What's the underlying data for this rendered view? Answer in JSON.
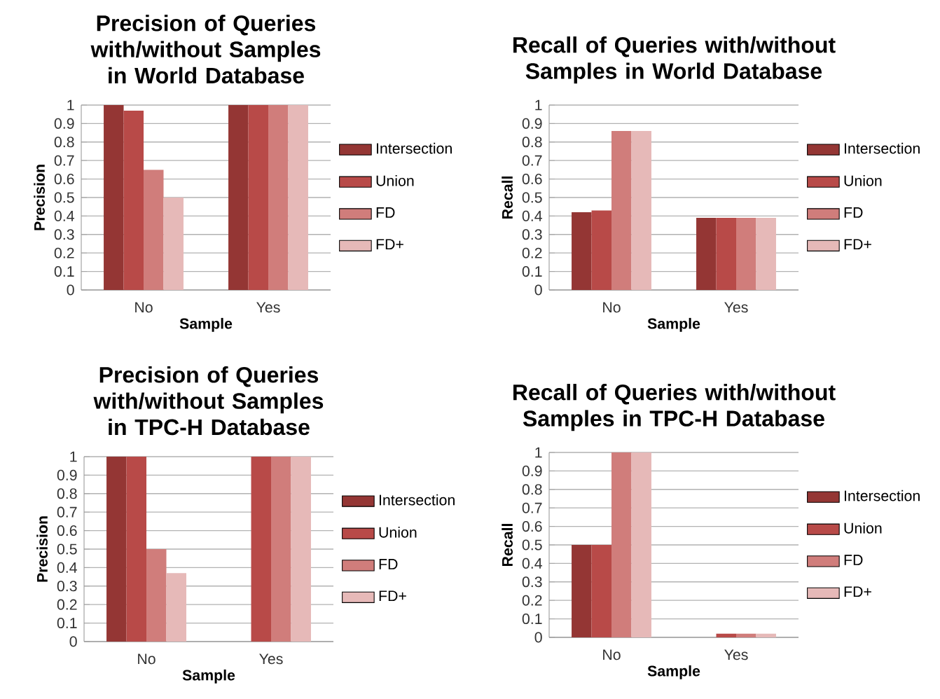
{
  "chart_data": [
    {
      "type": "bar",
      "title": "Precision of Queries with/without Samples in World Database",
      "xlabel": "Sample",
      "ylabel": "Precision",
      "categories": [
        "No",
        "Yes"
      ],
      "ylim": [
        0,
        1
      ],
      "yticks": [
        0,
        0.1,
        0.2,
        0.3,
        0.4,
        0.5,
        0.6,
        0.7,
        0.8,
        0.9,
        1
      ],
      "grid": "y",
      "legend": "right",
      "series": [
        {
          "name": "Intersection",
          "color": "#943634",
          "values": [
            1,
            1
          ]
        },
        {
          "name": "Union",
          "color": "#b84a48",
          "values": [
            0.97,
            1
          ]
        },
        {
          "name": "FD",
          "color": "#d07d7b",
          "values": [
            0.65,
            1
          ]
        },
        {
          "name": "FD+",
          "color": "#e6b9b8",
          "values": [
            0.5,
            1
          ]
        }
      ]
    },
    {
      "type": "bar",
      "title": "Recall of Queries with/without Samples in World Database",
      "xlabel": "Sample",
      "ylabel": "Recall",
      "categories": [
        "No",
        "Yes"
      ],
      "ylim": [
        0,
        1
      ],
      "yticks": [
        0,
        0.1,
        0.2,
        0.3,
        0.4,
        0.5,
        0.6,
        0.7,
        0.8,
        0.9,
        1
      ],
      "grid": "y",
      "legend": "right",
      "series": [
        {
          "name": "Intersection",
          "color": "#943634",
          "values": [
            0.42,
            0.39
          ]
        },
        {
          "name": "Union",
          "color": "#b84a48",
          "values": [
            0.43,
            0.39
          ]
        },
        {
          "name": "FD",
          "color": "#d07d7b",
          "values": [
            0.86,
            0.39
          ]
        },
        {
          "name": "FD+",
          "color": "#e6b9b8",
          "values": [
            0.86,
            0.39
          ]
        }
      ]
    },
    {
      "type": "bar",
      "title": "Precision of Queries with/without Samples in TPC-H Database",
      "xlabel": "Sample",
      "ylabel": "Precision",
      "categories": [
        "No",
        "Yes"
      ],
      "ylim": [
        0,
        1
      ],
      "yticks": [
        0,
        0.1,
        0.2,
        0.3,
        0.4,
        0.5,
        0.6,
        0.7,
        0.8,
        0.9,
        1
      ],
      "grid": "y",
      "legend": "right",
      "series": [
        {
          "name": "Intersection",
          "color": "#943634",
          "values": [
            1,
            0
          ]
        },
        {
          "name": "Union",
          "color": "#b84a48",
          "values": [
            1,
            1
          ]
        },
        {
          "name": "FD",
          "color": "#d07d7b",
          "values": [
            0.5,
            1
          ]
        },
        {
          "name": "FD+",
          "color": "#e6b9b8",
          "values": [
            0.37,
            1
          ]
        }
      ]
    },
    {
      "type": "bar",
      "title": "Recall of Queries with/without Samples in TPC-H Database",
      "xlabel": "Sample",
      "ylabel": "Recall",
      "categories": [
        "No",
        "Yes"
      ],
      "ylim": [
        0,
        1
      ],
      "yticks": [
        0,
        0.1,
        0.2,
        0.3,
        0.4,
        0.5,
        0.6,
        0.7,
        0.8,
        0.9,
        1
      ],
      "grid": "y",
      "legend": "right",
      "series": [
        {
          "name": "Intersection",
          "color": "#943634",
          "values": [
            0.5,
            0
          ]
        },
        {
          "name": "Union",
          "color": "#b84a48",
          "values": [
            0.5,
            0.02
          ]
        },
        {
          "name": "FD",
          "color": "#d07d7b",
          "values": [
            1,
            0.02
          ]
        },
        {
          "name": "FD+",
          "color": "#e6b9b8",
          "values": [
            1,
            0.02
          ]
        }
      ]
    }
  ]
}
